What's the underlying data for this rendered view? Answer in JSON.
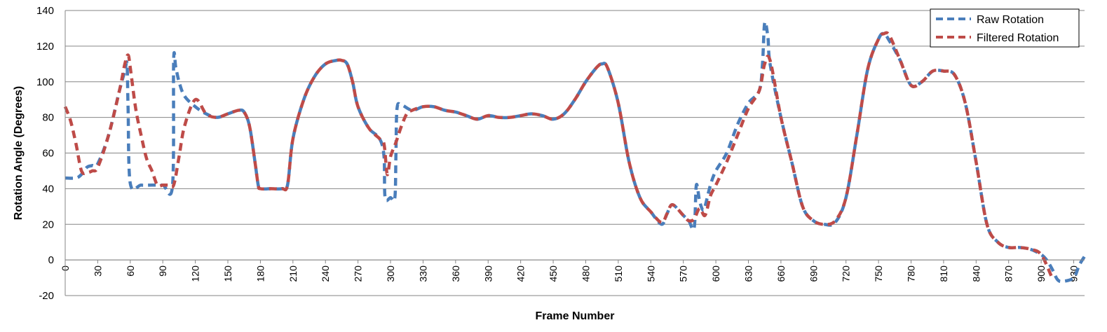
{
  "chart_data": {
    "type": "line",
    "xlabel": "Frame Number",
    "ylabel": "Rotation Angle (Degrees)",
    "xlim": [
      0,
      940
    ],
    "ylim": [
      -20,
      140
    ],
    "yticks": [
      -20,
      0,
      20,
      40,
      60,
      80,
      100,
      120,
      140
    ],
    "xticks": [
      0,
      30,
      60,
      90,
      120,
      150,
      180,
      210,
      240,
      270,
      300,
      330,
      360,
      390,
      420,
      450,
      480,
      510,
      540,
      570,
      600,
      630,
      660,
      690,
      720,
      750,
      780,
      810,
      840,
      870,
      900,
      930
    ],
    "grid": "horizontal",
    "legend": "top-right",
    "series": [
      {
        "name": "Raw Rotation",
        "color": "#4a7ebb",
        "style": "dashed",
        "x": [
          0,
          10,
          15,
          20,
          25,
          30,
          40,
          50,
          55,
          57,
          58,
          60,
          70,
          80,
          90,
          99,
          100,
          102,
          105,
          110,
          120,
          130,
          140,
          150,
          160,
          165,
          170,
          175,
          178,
          180,
          190,
          200,
          205,
          210,
          220,
          230,
          240,
          250,
          255,
          260,
          265,
          270,
          280,
          290,
          294,
          295,
          300,
          304,
          305,
          306,
          310,
          320,
          330,
          340,
          350,
          360,
          370,
          380,
          390,
          400,
          410,
          420,
          430,
          440,
          450,
          460,
          470,
          480,
          490,
          495,
          500,
          510,
          520,
          530,
          540,
          550,
          555,
          560,
          570,
          575,
          580,
          582,
          585,
          588,
          590,
          595,
          600,
          610,
          620,
          630,
          640,
          643,
          645,
          648,
          650,
          660,
          670,
          680,
          690,
          700,
          710,
          720,
          730,
          740,
          750,
          755,
          760,
          770,
          780,
          790,
          800,
          810,
          820,
          830,
          840,
          850,
          860,
          870,
          880,
          890,
          900,
          905,
          910,
          915,
          920,
          930,
          935,
          940
        ],
        "y": [
          46,
          46,
          48,
          52,
          53,
          54,
          70,
          95,
          106,
          110,
          85,
          43,
          42,
          42,
          42,
          42,
          112,
          108,
          100,
          92,
          86,
          82,
          80,
          82,
          84,
          83,
          75,
          55,
          42,
          40,
          40,
          40,
          42,
          68,
          90,
          103,
          110,
          112,
          112,
          110,
          100,
          86,
          74,
          68,
          58,
          35,
          35,
          35,
          60,
          85,
          87,
          84,
          86,
          86,
          84,
          83,
          81,
          79,
          81,
          80,
          80,
          81,
          82,
          81,
          79,
          82,
          90,
          100,
          108,
          110,
          108,
          88,
          55,
          35,
          27,
          20,
          26,
          31,
          25,
          22,
          18,
          42,
          33,
          28,
          30,
          42,
          50,
          60,
          76,
          88,
          95,
          110,
          133,
          125,
          110,
          80,
          55,
          30,
          22,
          20,
          21,
          35,
          70,
          107,
          124,
          127,
          123,
          112,
          98,
          100,
          106,
          106,
          104,
          88,
          55,
          20,
          10,
          7,
          7,
          6,
          3,
          0,
          -5,
          -11,
          -12,
          -10,
          -3,
          2
        ]
      },
      {
        "name": "Filtered Rotation",
        "color": "#be4b48",
        "style": "dashed",
        "x": [
          0,
          5,
          10,
          15,
          20,
          25,
          30,
          40,
          50,
          55,
          58,
          60,
          65,
          70,
          75,
          80,
          85,
          90,
          95,
          100,
          105,
          110,
          120,
          130,
          140,
          150,
          160,
          165,
          170,
          175,
          178,
          180,
          190,
          200,
          205,
          210,
          220,
          230,
          240,
          250,
          255,
          260,
          265,
          270,
          280,
          290,
          294,
          297,
          300,
          305,
          310,
          315,
          320,
          330,
          340,
          350,
          360,
          370,
          380,
          390,
          400,
          410,
          420,
          430,
          440,
          450,
          460,
          470,
          480,
          490,
          495,
          500,
          510,
          520,
          530,
          540,
          550,
          555,
          560,
          570,
          575,
          580,
          585,
          590,
          595,
          600,
          610,
          620,
          630,
          640,
          645,
          650,
          660,
          670,
          680,
          690,
          700,
          710,
          720,
          730,
          740,
          750,
          755,
          760,
          770,
          780,
          790,
          800,
          810,
          820,
          830,
          840,
          850,
          860,
          870,
          880,
          890,
          900,
          910
        ],
        "y": [
          86,
          78,
          65,
          50,
          49,
          50,
          52,
          70,
          95,
          110,
          115,
          108,
          85,
          70,
          57,
          50,
          42,
          42,
          42,
          42,
          58,
          75,
          90,
          82,
          80,
          82,
          84,
          83,
          75,
          55,
          42,
          40,
          40,
          40,
          42,
          68,
          90,
          103,
          110,
          112,
          112,
          110,
          100,
          86,
          74,
          68,
          65,
          48,
          58,
          66,
          75,
          82,
          84,
          86,
          86,
          84,
          83,
          81,
          79,
          81,
          80,
          80,
          81,
          82,
          81,
          79,
          82,
          90,
          100,
          108,
          110,
          108,
          88,
          55,
          35,
          27,
          21,
          26,
          31,
          25,
          22,
          23,
          29,
          25,
          36,
          42,
          55,
          70,
          85,
          95,
          110,
          112,
          80,
          55,
          30,
          22,
          20,
          22,
          35,
          70,
          107,
          124,
          127,
          126,
          112,
          98,
          100,
          106,
          106,
          104,
          88,
          55,
          20,
          10,
          7,
          7,
          6,
          3,
          -10
        ]
      }
    ]
  }
}
